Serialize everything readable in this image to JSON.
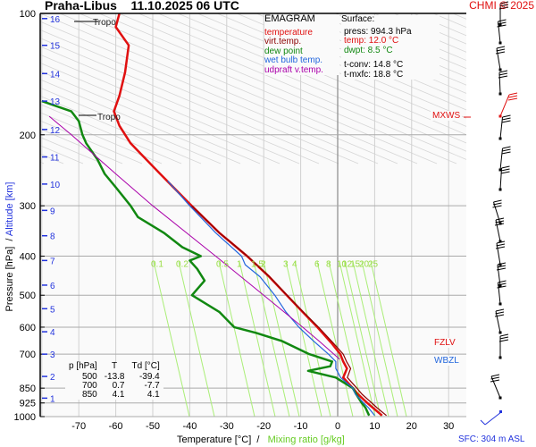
{
  "header": {
    "title": "Praha-Libus    11.10.2025 06 UTC",
    "copyright": "CHMI © 2025"
  },
  "legend": {
    "title": "EMAGRAM",
    "items": [
      {
        "label": "temperature",
        "color": "#e01010"
      },
      {
        "label": "virt.temp.",
        "color": "#8b0000"
      },
      {
        "label": "dew point",
        "color": "#118811"
      },
      {
        "label": "wet bulb temp.",
        "color": "#2266dd"
      },
      {
        "label": "udpraft v.temp.",
        "color": "#aa00aa"
      }
    ]
  },
  "surface": {
    "title": "Surface:",
    "press": "press: 994.3 hPa",
    "temp": "temp: 12.0 °C",
    "dwpt": "dwpt: 8.5 °C",
    "tconv": "t-conv: 14.8 °C",
    "tmxfc": "t-mxfc: 18.8 °C"
  },
  "level_table": {
    "headers": [
      "p [hPa]",
      "T",
      "Td [°C]"
    ],
    "rows": [
      [
        "500",
        "-13.8",
        "-39.4"
      ],
      [
        "700",
        "0.7",
        "-7.7"
      ],
      [
        "850",
        "4.1",
        "4.1"
      ]
    ]
  },
  "axes": {
    "xlabel_temp": "Temperature [°C]  /",
    "xlabel_mr": "Mixing ratio [g/kg]",
    "ylabel_p": "Pressure [hPa]  /",
    "ylabel_alt": "Altitude [km]",
    "sfc_asl": "SFC: 304 m ASL"
  },
  "markers": {
    "tropo_upper": "Tropo",
    "tropo_lower": "Tropo",
    "mxws": "MXWS",
    "fzlv": "FZLV",
    "wbzl": "WBZL"
  },
  "chart_data": {
    "type": "line",
    "title": "EMAGRAM Praha-Libus 11.10.2025 06 UTC",
    "xlabel": "Temperature [°C] / Mixing ratio [g/kg]",
    "ylabel": "Pressure [hPa] / Altitude [km]",
    "xlim": [
      -80,
      35
    ],
    "ylim": [
      1000,
      100
    ],
    "y_scale": "log",
    "grid": true,
    "x_ticks": [
      -70,
      -60,
      -50,
      -40,
      -30,
      -20,
      -10,
      0,
      10,
      20,
      30
    ],
    "y_ticks": [
      100,
      200,
      300,
      400,
      500,
      600,
      700,
      850,
      925,
      1000
    ],
    "altitude_ticks_km": [
      1,
      2,
      3,
      4,
      5,
      6,
      7,
      8,
      9,
      10,
      11,
      12,
      13,
      14,
      15,
      16
    ],
    "mixing_ratio_labels": [
      "0.1",
      "0.2",
      "0.5",
      "1",
      "1.5",
      "2",
      "3",
      "4",
      "6",
      "8",
      "10",
      "12",
      "15",
      "20",
      "25"
    ],
    "series": [
      {
        "name": "temperature",
        "color": "#e01010",
        "points": [
          [
            994,
            12.0
          ],
          [
            950,
            9.5
          ],
          [
            925,
            8.0
          ],
          [
            880,
            5.5
          ],
          [
            850,
            4.1
          ],
          [
            800,
            1.5
          ],
          [
            760,
            2.5
          ],
          [
            730,
            1.5
          ],
          [
            700,
            0.7
          ],
          [
            660,
            -1.5
          ],
          [
            600,
            -5.5
          ],
          [
            550,
            -9.5
          ],
          [
            500,
            -13.8
          ],
          [
            450,
            -18.5
          ],
          [
            400,
            -24.5
          ],
          [
            350,
            -32
          ],
          [
            300,
            -39.5
          ],
          [
            250,
            -48
          ],
          [
            210,
            -56
          ],
          [
            190,
            -59
          ],
          [
            175,
            -60.5
          ],
          [
            160,
            -59
          ],
          [
            140,
            -57.5
          ],
          [
            120,
            -56.5
          ],
          [
            108,
            -60
          ],
          [
            100,
            -59
          ]
        ]
      },
      {
        "name": "virt.temp.",
        "color": "#8b0000",
        "points": [
          [
            994,
            13.2
          ],
          [
            950,
            10.6
          ],
          [
            925,
            9.2
          ],
          [
            880,
            6.6
          ],
          [
            850,
            5.2
          ],
          [
            800,
            2.6
          ],
          [
            760,
            3.5
          ],
          [
            730,
            2.4
          ],
          [
            700,
            1.5
          ],
          [
            660,
            -1.0
          ],
          [
            600,
            -5.2
          ],
          [
            550,
            -9.3
          ],
          [
            500,
            -13.7
          ],
          [
            450,
            -18.4
          ],
          [
            400,
            -24.4
          ],
          [
            350,
            -32
          ],
          [
            300,
            -39.5
          ]
        ]
      },
      {
        "name": "dew point",
        "color": "#118811",
        "points": [
          [
            994,
            8.5
          ],
          [
            950,
            7.5
          ],
          [
            925,
            6.5
          ],
          [
            880,
            5.0
          ],
          [
            850,
            4.1
          ],
          [
            800,
            -0.5
          ],
          [
            770,
            -8
          ],
          [
            750,
            -2
          ],
          [
            730,
            -1.5
          ],
          [
            700,
            -7.7
          ],
          [
            650,
            -15
          ],
          [
            620,
            -22
          ],
          [
            600,
            -28
          ],
          [
            550,
            -32
          ],
          [
            500,
            -39.4
          ],
          [
            460,
            -36
          ],
          [
            430,
            -38
          ],
          [
            410,
            -40
          ],
          [
            400,
            -37
          ],
          [
            380,
            -42
          ],
          [
            350,
            -47
          ],
          [
            320,
            -54
          ],
          [
            300,
            -56
          ],
          [
            270,
            -60
          ],
          [
            250,
            -63
          ],
          [
            230,
            -65
          ],
          [
            210,
            -68
          ],
          [
            200,
            -69
          ],
          [
            185,
            -70
          ],
          [
            175,
            -72
          ],
          [
            165,
            -80
          ]
        ]
      },
      {
        "name": "wet bulb temp.",
        "color": "#2266dd",
        "points": [
          [
            994,
            10.0
          ],
          [
            950,
            8.3
          ],
          [
            925,
            7.0
          ],
          [
            880,
            4.8
          ],
          [
            850,
            4.1
          ],
          [
            800,
            0.8
          ],
          [
            760,
            -0.5
          ],
          [
            730,
            -0.5
          ],
          [
            700,
            -2.5
          ],
          [
            650,
            -6.5
          ],
          [
            600,
            -10.5
          ],
          [
            550,
            -14
          ],
          [
            500,
            -17
          ],
          [
            450,
            -21
          ],
          [
            420,
            -25
          ],
          [
            400,
            -26
          ],
          [
            350,
            -33
          ],
          [
            300,
            -40
          ],
          [
            260,
            -46
          ]
        ]
      },
      {
        "name": "udpraft v.temp.",
        "color": "#aa00aa",
        "points": [
          [
            720,
            0.5
          ],
          [
            650,
            -5
          ],
          [
            600,
            -9.5
          ],
          [
            500,
            -20
          ],
          [
            400,
            -33
          ],
          [
            300,
            -50
          ],
          [
            250,
            -60
          ],
          [
            200,
            -72
          ],
          [
            180,
            -78
          ]
        ]
      }
    ],
    "wind_profile": "barbs shown on right side (kt), max wind level highlighted in red"
  }
}
